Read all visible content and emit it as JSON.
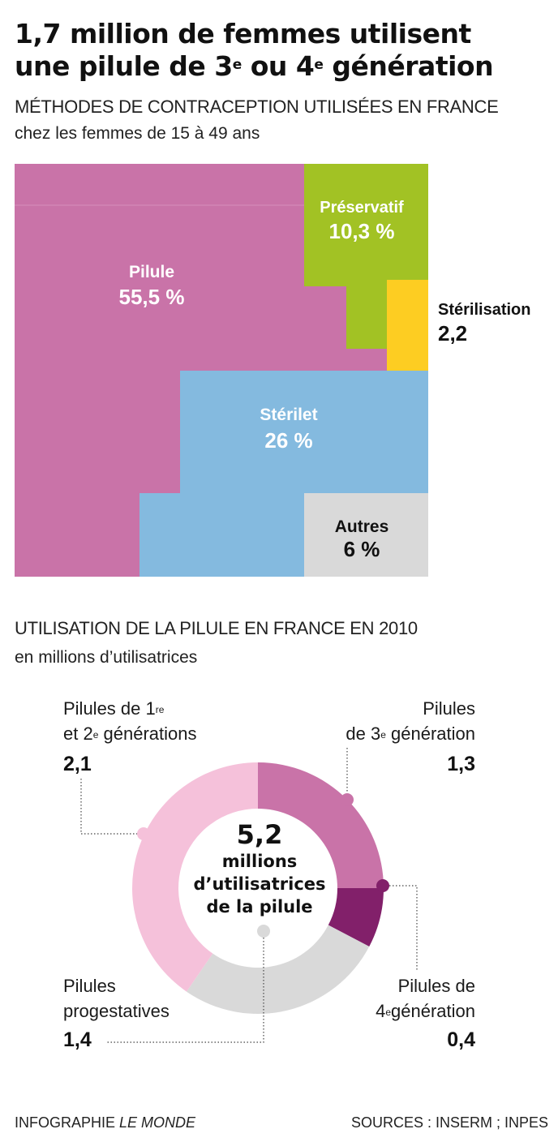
{
  "title": {
    "line1": "1,7 million de femmes utilisent",
    "line2_a": "une pilule de 3",
    "sup_e1": "e",
    "line2_b": " ou 4",
    "sup_e2": "e",
    "line2_c": " génération"
  },
  "section1": {
    "heading": "MÉTHODES DE CONTRACEPTION UTILISÉES EN FRANCE",
    "subheading": "chez les femmes de 15 à 49 ans"
  },
  "section2": {
    "heading": "UTILISATION  DE LA PILULE EN FRANCE EN 2010",
    "subheading": "en millions d’utilisatrices"
  },
  "footer": {
    "left_a": "INFOGRAPHIE ",
    "left_b": "LE MONDE",
    "right": "SOURCES :  INSERM ; INPES"
  },
  "colors": {
    "pilule": "#c973a8",
    "preservatif": "#a2c224",
    "sterilisation": "#fdcd22",
    "sterilet": "#84badf",
    "autres": "#d9d9d9",
    "gen12": "#f5c1da",
    "gen3": "#c973a8",
    "gen4": "#82206a",
    "progestatives": "#d9d9d9"
  },
  "chart_data": [
    {
      "type": "treemap",
      "title": "MÉTHODES DE CONTRACEPTION UTILISÉES EN FRANCE",
      "subtitle": "chez les femmes de 15 à 49 ans",
      "unit": "%",
      "items": [
        {
          "name": "Pilule",
          "value": 55.5,
          "label": "55,5 %"
        },
        {
          "name": "Préservatif",
          "value": 10.3,
          "label": "10,3 %"
        },
        {
          "name": "Stérilisation",
          "value": 2.2,
          "label": "2,2"
        },
        {
          "name": "Stérilet",
          "value": 26,
          "label": "26 %"
        },
        {
          "name": "Autres",
          "value": 6,
          "label": "6 %"
        }
      ]
    },
    {
      "type": "pie",
      "title": "UTILISATION  DE LA PILULE EN FRANCE EN 2010",
      "subtitle": "en millions d’utilisatrices",
      "total": {
        "value_label": "5,2",
        "text1": "millions",
        "text2": "d’utilisatrices",
        "text3": "de la pilule"
      },
      "slices": [
        {
          "key": "gen3",
          "value": 1.3,
          "value_label": "1,3"
        },
        {
          "key": "gen4",
          "value": 0.4,
          "value_label": "0,4"
        },
        {
          "key": "progestatives",
          "value": 1.4,
          "value_label": "1,4"
        },
        {
          "key": "gen12",
          "value": 2.1,
          "value_label": "2,1"
        }
      ],
      "labels": {
        "gen12_l1a": "Pilules de 1",
        "gen12_sup1": "re",
        "gen12_l2a": "et 2",
        "gen12_sup2": "e",
        "gen12_l2b": " générations",
        "gen3_l1": "Pilules",
        "gen3_l2a": "de 3",
        "gen3_sup": "e",
        "gen3_l2b": " génération",
        "prog_l1": "Pilules",
        "prog_l2": "progestatives",
        "gen4_l1": "Pilules de",
        "gen4_l2a": "4",
        "gen4_sup": "e",
        "gen4_l2b": "génération"
      }
    }
  ]
}
